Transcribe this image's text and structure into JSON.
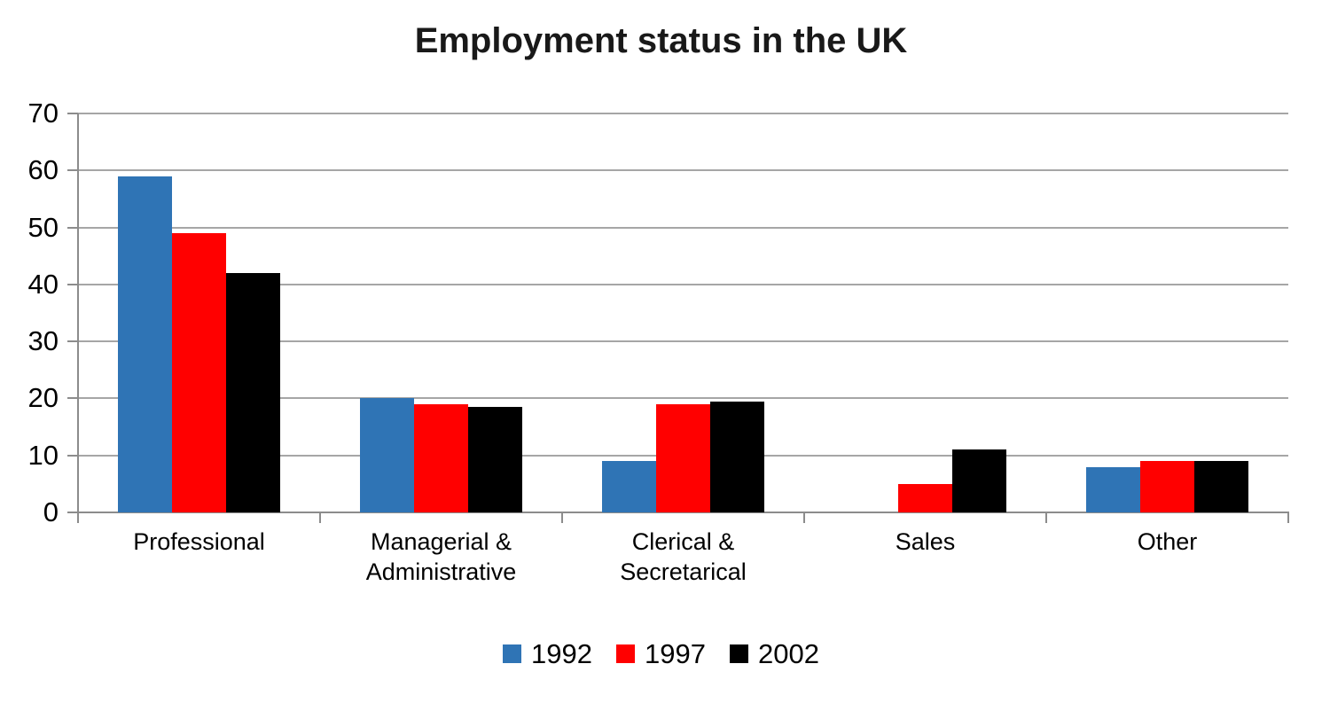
{
  "chart_data": {
    "type": "bar",
    "title": "Employment status in the UK",
    "categories": [
      "Professional",
      "Managerial &\nAdministrative",
      "Clerical &\nSecretarical",
      "Sales",
      "Other"
    ],
    "series": [
      {
        "name": "1992",
        "color": "#2F74B5",
        "values": [
          59,
          20,
          9,
          0,
          8
        ]
      },
      {
        "name": "1997",
        "color": "#FF0000",
        "values": [
          49,
          19,
          19,
          5,
          9
        ]
      },
      {
        "name": "2002",
        "color": "#000000",
        "values": [
          42,
          18.5,
          19.5,
          11,
          9
        ]
      }
    ],
    "xlabel": "",
    "ylabel": "",
    "ylim": [
      0,
      70
    ],
    "yticks": [
      0,
      10,
      20,
      30,
      40,
      50,
      60,
      70
    ],
    "grid": true,
    "legend_position": "bottom",
    "colors": {
      "axis": "#8C8C8C",
      "gridline": "#A6A6A6",
      "text": "#000000",
      "title": "#191919",
      "background": "#FFFFFF"
    }
  }
}
